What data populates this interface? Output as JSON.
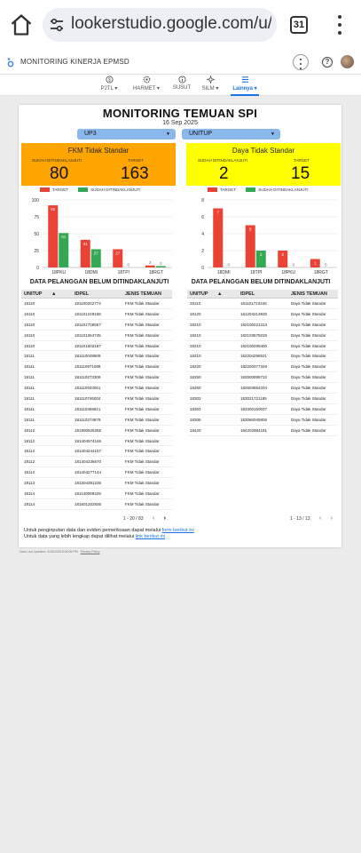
{
  "browser": {
    "url": "lookerstudio.google.com/u/0",
    "tab_count": "31"
  },
  "app": {
    "title": "MONITORING KINERJA EPMSD"
  },
  "nav": [
    {
      "label": "P2TL",
      "has_caret": true,
      "icon": "dollar-icon"
    },
    {
      "label": "HARMET",
      "has_caret": true,
      "icon": "gear-icon"
    },
    {
      "label": "SUSUT",
      "has_caret": false,
      "icon": "info-icon"
    },
    {
      "label": "SILM",
      "has_caret": true,
      "icon": "sparkle-icon"
    },
    {
      "label": "Lainnya",
      "has_caret": true,
      "icon": "list-icon",
      "active": true
    }
  ],
  "report": {
    "title": "MONITORING TEMUAN SPI",
    "date": "16 Sep 2025",
    "filters": {
      "up3": "UP3",
      "unitup": "UNITUP"
    },
    "colors": {
      "target": "#ea4335",
      "done": "#34a853",
      "kpi_left": "#ffa500",
      "kpi_right": "#ffff00",
      "filter": "#8ab8ec"
    },
    "legend": {
      "target": "TARGET",
      "done": "SUDAH DITINDAKLANJUTI"
    },
    "left": {
      "kpi_title": "FKM Tidak Standar",
      "done_label": "SUDAH DITINDAKLANJUTI",
      "done_value": "80",
      "target_label": "TARGET",
      "target_value": "163",
      "section_title": "DATA PELANGGAN BELUM DITINDAKLANJUTI",
      "columns": [
        "UNITUP",
        "IDPEL",
        "JENIS TEMUAN"
      ],
      "rows": [
        [
          "18110",
          "181100202774",
          "FKM Tidak Standar"
        ],
        [
          "18110",
          "181101249158",
          "FKM Tidak Standar"
        ],
        [
          "18110",
          "181101708557",
          "FKM Tidak Standar"
        ],
        [
          "18110",
          "181101264745",
          "FKM Tidak Standar"
        ],
        [
          "18110",
          "181101502167",
          "FKM Tidak Standar"
        ],
        [
          "18111",
          "181110049509",
          "FKM Tidak Standar"
        ],
        [
          "18111",
          "181110971089",
          "FKM Tidak Standar"
        ],
        [
          "18111",
          "181110273309",
          "FKM Tidak Standar"
        ],
        [
          "18111",
          "181110933061",
          "FKM Tidak Standar"
        ],
        [
          "18111",
          "181110746004",
          "FKM Tidak Standar"
        ],
        [
          "18111",
          "181110369621",
          "FKM Tidak Standar"
        ],
        [
          "18111",
          "181110274879",
          "FKM Tidak Standar"
        ],
        [
          "18112",
          "181900525255",
          "FKM Tidak Standar"
        ],
        [
          "18112",
          "181404574165",
          "FKM Tidak Standar"
        ],
        [
          "18112",
          "181404244157",
          "FKM Tidak Standar"
        ],
        [
          "18112",
          "181404236670",
          "FKM Tidak Standar"
        ],
        [
          "18112",
          "181404277144",
          "FKM Tidak Standar"
        ],
        [
          "18113",
          "181204381235",
          "FKM Tidak Standar"
        ],
        [
          "18114",
          "181140089329",
          "FKM Tidak Standar"
        ],
        [
          "18114",
          "181601202936",
          "FKM Tidak Standar"
        ]
      ],
      "pager": "1 - 20 / 83"
    },
    "right": {
      "kpi_title": "Daya Tidak Standar",
      "done_label": "SUDAH DITINDAKLANJUTI",
      "done_value": "2",
      "target_label": "TARGET",
      "target_value": "15",
      "section_title": "DATA PELANGGAN BELUM DITINDAKLANJUTI",
      "columns": [
        "UNITUP",
        "IDPEL",
        "JENIS TEMUAN"
      ],
      "rows": [
        [
          "18110",
          "181101723446",
          "Daya Tidak Standar"
        ],
        [
          "18120",
          "181204213930",
          "Daya Tidak Standar"
        ],
        [
          "18210",
          "182100221313",
          "Daya Tidak Standar"
        ],
        [
          "18210",
          "182103579226",
          "Daya Tidak Standar"
        ],
        [
          "18210",
          "182100299400",
          "Daya Tidak Standar"
        ],
        [
          "18210",
          "182204296521",
          "Daya Tidak Standar"
        ],
        [
          "18220",
          "182200077349",
          "Daya Tidak Standar"
        ],
        [
          "18250",
          "182500895732",
          "Daya Tidak Standar"
        ],
        [
          "18260",
          "182603654204",
          "Daya Tidak Standar"
        ],
        [
          "18302",
          "183021721195",
          "Daya Tidak Standar"
        ],
        [
          "18303",
          "183300150037",
          "Daya Tidak Standar"
        ],
        [
          "18306",
          "183060045906",
          "Daya Tidak Standar"
        ],
        [
          "18420",
          "184202884181",
          "Daya Tidak Standar"
        ]
      ],
      "pager": "1 - 13 / 13"
    },
    "footer": {
      "line1_prefix": "Untuk penginputan data dan eviden pemeriksaan dapat melalui",
      "line1_link": "form berikut ini",
      "line2_prefix": "Untuk data yang lebih lengkap dapat dilihat melalui",
      "line2_link": "link berikut ini"
    }
  },
  "updated_text": "Data Last Updated: 9/16/2025 8:09:06 PM",
  "privacy_text": "Privacy Policy",
  "chart_data": [
    {
      "type": "bar",
      "categories": [
        "18PKU",
        "18DMI",
        "18TPI",
        "18RGT"
      ],
      "series": [
        {
          "name": "TARGET",
          "values": [
            92,
            41,
            27,
            3
          ]
        },
        {
          "name": "SUDAH DITINDAKLANJUTI",
          "values": [
            51,
            27,
            0,
            2
          ]
        }
      ],
      "ylim": [
        0,
        100
      ],
      "yticks": [
        0,
        25,
        50,
        75,
        100
      ]
    },
    {
      "type": "bar",
      "categories": [
        "18DMI",
        "18TPI",
        "18PKU",
        "18RGT"
      ],
      "series": [
        {
          "name": "TARGET",
          "values": [
            7,
            5,
            2,
            1
          ]
        },
        {
          "name": "SUDAH DITINDAKLANJUTI",
          "values": [
            0,
            2,
            0,
            0
          ]
        }
      ],
      "ylim": [
        0,
        8
      ],
      "yticks": [
        0,
        2,
        4,
        6,
        8
      ]
    }
  ]
}
